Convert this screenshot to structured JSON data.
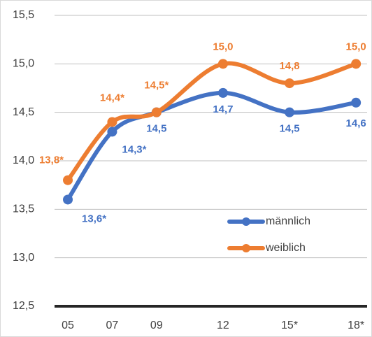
{
  "chart_data": {
    "type": "line",
    "x": [
      5,
      7,
      9,
      12,
      15,
      18
    ],
    "xticks": [
      {
        "value": 5,
        "label": "05"
      },
      {
        "value": 7,
        "label": "07"
      },
      {
        "value": 9,
        "label": "09"
      },
      {
        "value": 12,
        "label": "12"
      },
      {
        "value": 15,
        "label": "15*"
      },
      {
        "value": 18,
        "label": "18*"
      }
    ],
    "xlim": [
      4.4,
      18.5
    ],
    "ylim": [
      12.5,
      15.5
    ],
    "yticks": [
      {
        "value": 12.5,
        "label": "12,5"
      },
      {
        "value": 13,
        "label": "13,0"
      },
      {
        "value": 13.5,
        "label": "13,5"
      },
      {
        "value": 14,
        "label": "14,0"
      },
      {
        "value": 14.5,
        "label": "14,5"
      },
      {
        "value": 15,
        "label": "15,0"
      },
      {
        "value": 15.5,
        "label": "15,5"
      }
    ],
    "grid": true,
    "legend": "lower right",
    "series": [
      {
        "name": "männlich",
        "color": "#4472c4",
        "values": [
          13.6,
          14.3,
          14.5,
          14.7,
          14.5,
          14.6
        ],
        "value_labels": [
          "13,6*",
          "14,3*",
          "14,5",
          "14,7",
          "14,5",
          "14,6"
        ]
      },
      {
        "name": "weiblich",
        "color": "#ed7d31",
        "values": [
          13.8,
          14.4,
          14.5,
          15.0,
          14.8,
          15.0
        ],
        "value_labels": [
          "13,8*",
          "14,4*",
          "14,5*",
          "15,0",
          "14,8",
          "15,0"
        ]
      }
    ]
  }
}
